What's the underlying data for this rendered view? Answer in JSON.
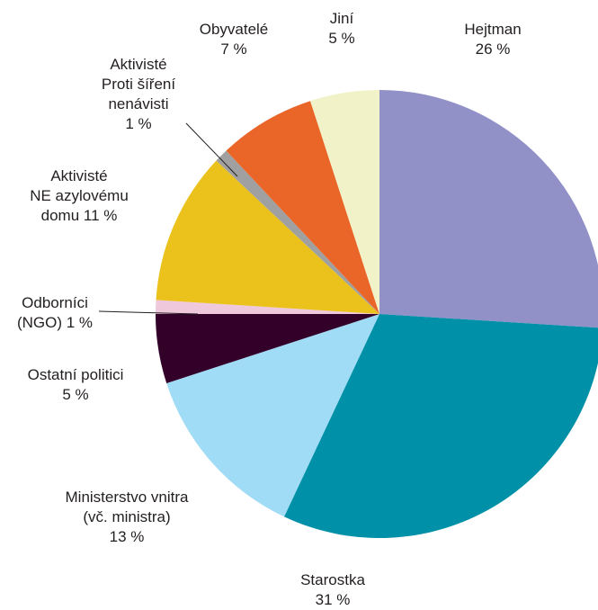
{
  "chart_data": {
    "type": "pie",
    "start": "12 o'clock",
    "direction": "clockwise",
    "slices": [
      {
        "label": "Hejtman",
        "value_text": "26 %",
        "value": 26,
        "color": "#9191c8"
      },
      {
        "label": "Starostka",
        "value_text": "31 %",
        "value": 31,
        "color": "#0090a8"
      },
      {
        "label": "Ministerstvo vnitra (vč. ministra)",
        "value_text": "13 %",
        "value": 13,
        "color": "#a0dcf5"
      },
      {
        "label": "Ostatní politici",
        "value_text": "5 %",
        "value": 5,
        "color": "#33002a"
      },
      {
        "label": "Odborníci (NGO)",
        "value_text": "1 %",
        "value": 1,
        "color": "#f0c8dc"
      },
      {
        "label": "Aktivisté NE azylovému domu",
        "value_text": "11 %",
        "value": 11,
        "color": "#ebc21c"
      },
      {
        "label": "Aktivisté Proti šíření nenávisti",
        "value_text": "1 %",
        "value": 1,
        "color": "#a0a0a0"
      },
      {
        "label": "Obyvatelé",
        "value_text": "7 %",
        "value": 7,
        "color": "#ea6528"
      },
      {
        "label": "Jiní",
        "value_text": "5 %",
        "value": 5,
        "color": "#f2f2c8"
      }
    ]
  },
  "labels": {
    "hejtman": {
      "l1": "Hejtman",
      "l2": "26 %"
    },
    "starostka": {
      "l1": "Starostka",
      "l2": "31 %"
    },
    "ministerstvo": {
      "l1": "Ministerstvo vnitra",
      "l2": "(vč. ministra)",
      "l3": "13 %"
    },
    "ostatni": {
      "l1": "Ostatní politici",
      "l2": "5 %"
    },
    "odbornici": {
      "l1": "Odborníci",
      "l2": "(NGO) 1 %"
    },
    "aktivisteNe": {
      "l1": "Aktivisté",
      "l2": "NE azylovému",
      "l3": "domu 11 %"
    },
    "aktivisteProti": {
      "l1": "Aktivisté",
      "l2": "Proti šíření",
      "l3": "nenávisti",
      "l4": "1 %"
    },
    "obyvatele": {
      "l1": "Obyvatelé",
      "l2": "7 %"
    },
    "jini": {
      "l1": "Jiní",
      "l2": "5 %"
    }
  }
}
